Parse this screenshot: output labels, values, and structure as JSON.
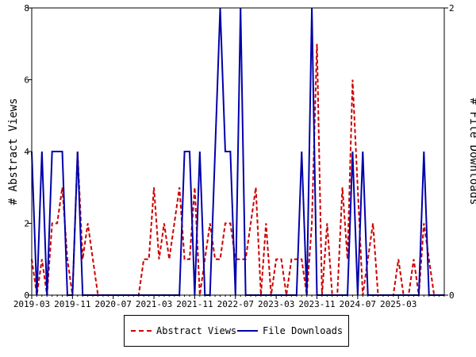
{
  "chart_data": {
    "type": "line",
    "x_labels": [
      "2019-03",
      "2019-04",
      "2019-05",
      "2019-06",
      "2019-07",
      "2019-08",
      "2019-09",
      "2019-10",
      "2019-11",
      "2019-12",
      "2020-01",
      "2020-02",
      "2020-03",
      "2020-04",
      "2020-05",
      "2020-06",
      "2020-07",
      "2020-08",
      "2020-09",
      "2020-10",
      "2020-11",
      "2020-12",
      "2021-01",
      "2021-02",
      "2021-03",
      "2021-04",
      "2021-05",
      "2021-06",
      "2021-07",
      "2021-08",
      "2021-09",
      "2021-10",
      "2021-11",
      "2021-12",
      "2022-01",
      "2022-02",
      "2022-03",
      "2022-04",
      "2022-05",
      "2022-06",
      "2022-07",
      "2022-08",
      "2022-09",
      "2022-10",
      "2022-11",
      "2022-12",
      "2023-01",
      "2023-02",
      "2023-03",
      "2023-04",
      "2023-05",
      "2023-06",
      "2023-07",
      "2023-08",
      "2023-09",
      "2023-10",
      "2023-11",
      "2023-12",
      "2024-01",
      "2024-02",
      "2024-03",
      "2024-04",
      "2024-05",
      "2024-06",
      "2024-07",
      "2024-08",
      "2024-09",
      "2024-10",
      "2024-11",
      "2024-12",
      "2025-01",
      "2025-02",
      "2025-03",
      "2025-04",
      "2025-05",
      "2025-06",
      "2025-07",
      "2025-08",
      "2025-09",
      "2025-10",
      "2025-11",
      "2025-12"
    ],
    "x_ticks": [
      "2019-03",
      "2019-11",
      "2020-07",
      "2021-03",
      "2021-11",
      "2022-07",
      "2023-03",
      "2023-11",
      "2024-07",
      "2025-03"
    ],
    "series": [
      {
        "name": "Abstract Views",
        "axis": "left",
        "color": "#cc0000",
        "style": "dashed",
        "values": [
          1,
          0,
          1,
          0,
          2,
          2,
          3,
          1,
          0,
          4,
          1,
          2,
          1,
          0,
          0,
          0,
          0,
          0,
          0,
          0,
          0,
          0,
          1,
          1,
          3,
          1,
          2,
          1,
          2,
          3,
          1,
          1,
          3,
          0,
          1,
          2,
          1,
          1,
          2,
          2,
          1,
          1,
          1,
          2,
          3,
          0,
          2,
          0,
          1,
          1,
          0,
          1,
          1,
          1,
          0,
          2,
          7,
          0,
          2,
          0,
          0,
          3,
          1,
          6,
          3,
          0,
          1,
          2,
          0,
          0,
          0,
          0,
          1,
          0,
          0,
          1,
          0,
          2,
          1,
          0,
          0,
          0
        ]
      },
      {
        "name": "File Downloads",
        "axis": "right",
        "color": "#0000aa",
        "style": "solid",
        "values": [
          1,
          0,
          1,
          0,
          1,
          1,
          1,
          0,
          0,
          1,
          0,
          0,
          0,
          0,
          0,
          0,
          0,
          0,
          0,
          0,
          0,
          0,
          0,
          0,
          0,
          0,
          0,
          0,
          0,
          0,
          1,
          1,
          0,
          1,
          0,
          0,
          1,
          2,
          1,
          1,
          0,
          2,
          0,
          0,
          0,
          0,
          0,
          0,
          0,
          0,
          0,
          0,
          0,
          1,
          0,
          2,
          0,
          0,
          0,
          0,
          0,
          0,
          0,
          1,
          0,
          1,
          0,
          0,
          0,
          0,
          0,
          0,
          0,
          0,
          0,
          0,
          0,
          1,
          0,
          0,
          0,
          0
        ]
      }
    ],
    "y_left": {
      "label": "# Abstract Views",
      "ylim": [
        0,
        8
      ],
      "ticks": [
        0,
        2,
        4,
        6,
        8
      ]
    },
    "y_right": {
      "label": "# File Downloads",
      "ylim": [
        0,
        2
      ],
      "ticks": [
        0,
        2
      ]
    },
    "grid": false,
    "legend_position": "bottom-center"
  }
}
